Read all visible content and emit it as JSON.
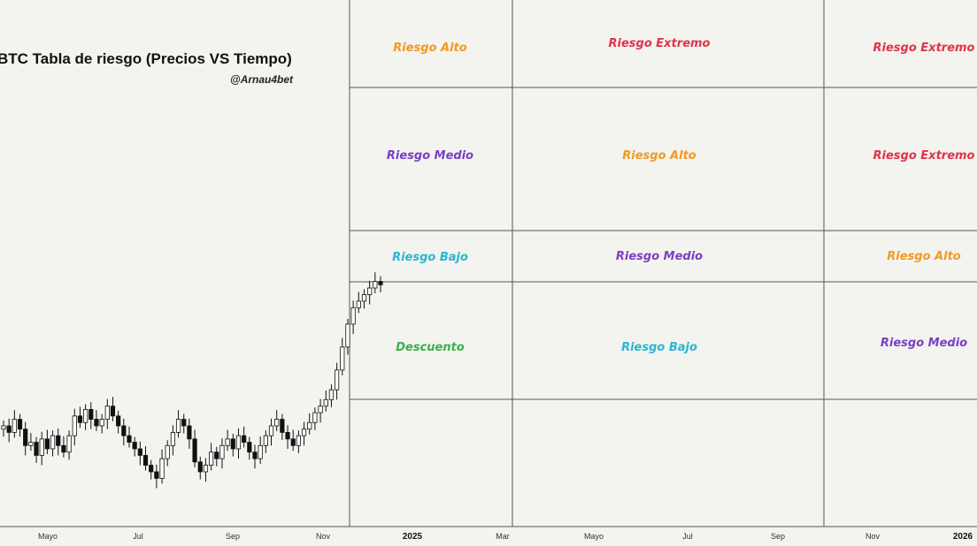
{
  "chart_data": {
    "type": "candlestick",
    "title": "BTC Tabla de riesgo (Precios VS Tiempo)",
    "author": "@Arnau4bet",
    "x_ticks": [
      {
        "label": "Mayo",
        "bold": false
      },
      {
        "label": "Jul",
        "bold": false
      },
      {
        "label": "Sep",
        "bold": false
      },
      {
        "label": "Nov",
        "bold": false
      },
      {
        "label": "2025",
        "bold": true
      },
      {
        "label": "Mar",
        "bold": false
      },
      {
        "label": "Mayo",
        "bold": false
      },
      {
        "label": "Jul",
        "bold": false
      },
      {
        "label": "Sep",
        "bold": false
      },
      {
        "label": "Nov",
        "bold": false
      },
      {
        "label": "2026",
        "bold": true
      }
    ],
    "zones": [
      {
        "col": 0,
        "row": 0,
        "label": "Riesgo Alto",
        "color": "#f29a1f"
      },
      {
        "col": 0,
        "row": 1,
        "label": "Riesgo Medio",
        "color": "#7b3fc4"
      },
      {
        "col": 0,
        "row": 2,
        "label": "Riesgo Bajo",
        "color": "#2bb6cf"
      },
      {
        "col": 0,
        "row": 3,
        "label": "Descuento",
        "color": "#3cae4a"
      },
      {
        "col": 1,
        "row": 0,
        "label": "Riesgo Extremo",
        "color": "#e0334a"
      },
      {
        "col": 1,
        "row": 1,
        "label": "Riesgo Alto",
        "color": "#f29a1f"
      },
      {
        "col": 1,
        "row": 2,
        "label": "Riesgo Medio",
        "color": "#7b3fc4"
      },
      {
        "col": 1,
        "row": 3,
        "label": "Riesgo Bajo",
        "color": "#2bb6cf"
      },
      {
        "col": 2,
        "row": 0,
        "label": "Riesgo Extremo",
        "color": "#e0334a"
      },
      {
        "col": 2,
        "row": 1,
        "label": "Riesgo Extremo",
        "color": "#e0334a"
      },
      {
        "col": 2,
        "row": 2,
        "label": "Riesgo Alto",
        "color": "#f29a1f"
      },
      {
        "col": 2,
        "row": 3,
        "label": "Riesgo Medio",
        "color": "#7b3fc4"
      }
    ],
    "price_series": [
      61,
      59,
      63,
      60,
      55,
      56,
      52,
      57,
      54,
      58,
      55,
      53,
      58,
      64,
      62,
      66,
      63,
      61,
      63,
      67,
      64,
      61,
      58,
      56,
      54,
      52,
      49,
      47,
      45,
      51,
      55,
      59,
      63,
      61,
      57,
      50,
      47,
      49,
      53,
      51,
      55,
      57,
      54,
      58,
      56,
      53,
      51,
      55,
      58,
      61,
      63,
      59,
      57,
      55,
      58,
      60,
      62,
      65,
      67,
      69,
      72,
      78,
      85,
      92,
      97,
      99,
      101,
      103,
      105,
      104
    ],
    "grid": true
  }
}
